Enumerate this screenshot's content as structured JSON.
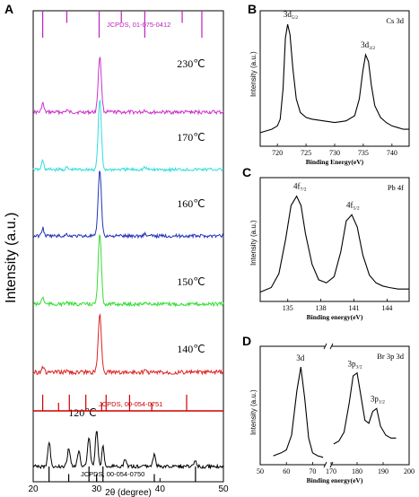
{
  "chart_data": [
    {
      "panel": "A",
      "type": "line",
      "xlabel": "2θ (degree)",
      "ylabel": "Intensity (a.u.)",
      "xlim": [
        20,
        50
      ],
      "xticks": [
        20,
        30,
        40,
        50
      ],
      "series": [
        {
          "name": "230℃",
          "color": "#cc33cc"
        },
        {
          "name": "170℃",
          "color": "#33dddd"
        },
        {
          "name": "160℃",
          "color": "#2233bb"
        },
        {
          "name": "150℃",
          "color": "#33dd33"
        },
        {
          "name": "140℃",
          "color": "#dd2222"
        },
        {
          "name": "120℃",
          "color": "#000000"
        }
      ],
      "peaks_x": [
        21.5,
        30.5
      ],
      "references": [
        {
          "label": "JCPDS, 01-075-0412",
          "color": "#bb22bb",
          "sticks_x": [
            21.5,
            25.3,
            30.4,
            33.9,
            37.6,
            43.5,
            46.6
          ]
        },
        {
          "label": "JCPDS, 00-054-0751",
          "color": "#cc0000",
          "sticks_x": [
            21.5,
            24.0,
            25.7,
            28.3,
            30.8,
            31.5,
            35.2,
            38.7,
            44.2
          ]
        },
        {
          "label": "JCPDS, 00-054-0750",
          "color": "#000000",
          "sticks_x": [
            22.5,
            25.6,
            28.8,
            30.0,
            31.0,
            39.1,
            45.6
          ]
        }
      ]
    },
    {
      "panel": "B",
      "type": "line",
      "title": "Cs 3d",
      "xlabel": "Binding Energy(eV)",
      "ylabel": "Intensity (a.u.)",
      "xlim": [
        717,
        743
      ],
      "xticks": [
        720,
        725,
        730,
        735,
        740
      ],
      "x": [
        717,
        718,
        719,
        720,
        720.5,
        721,
        721.4,
        721.8,
        722.2,
        722.7,
        723.3,
        724,
        725,
        726,
        728,
        730,
        732,
        733.5,
        734.3,
        734.9,
        735.4,
        735.9,
        736.4,
        737,
        738,
        739,
        740,
        741,
        742,
        743
      ],
      "y": [
        8,
        9,
        10,
        12,
        16,
        34,
        64,
        72,
        66,
        46,
        28,
        20,
        17,
        16,
        15,
        14,
        15,
        18,
        28,
        44,
        54,
        50,
        36,
        24,
        17,
        14,
        12,
        11,
        10,
        10
      ],
      "peak_labels": [
        {
          "text": "3d",
          "sub": "5/2",
          "x": 722
        },
        {
          "text": "3d",
          "sub": "3/2",
          "x": 735.5
        }
      ]
    },
    {
      "panel": "C",
      "type": "line",
      "title": "Pb 4f",
      "xlabel": "Binding energy(eV)",
      "ylabel": "Intensity (a.u.)",
      "xlim": [
        132.5,
        146
      ],
      "xticks": [
        135,
        138,
        141,
        144
      ],
      "x": [
        132.5,
        133.5,
        134.2,
        134.8,
        135.3,
        135.8,
        136.2,
        136.6,
        137.2,
        137.8,
        138.5,
        139.2,
        139.8,
        140.3,
        140.8,
        141.3,
        141.8,
        142.4,
        143,
        143.6,
        144.2,
        145,
        146
      ],
      "y": [
        6,
        9,
        18,
        40,
        62,
        68,
        62,
        44,
        24,
        14,
        12,
        16,
        32,
        52,
        56,
        48,
        30,
        17,
        12,
        10,
        9,
        8,
        8
      ],
      "peak_labels": [
        {
          "text": "4f",
          "sub": "7/2",
          "x": 136
        },
        {
          "text": "4f",
          "sub": "5/2",
          "x": 140.8
        }
      ]
    },
    {
      "panel": "D",
      "type": "line",
      "title": "Br 3p 3d",
      "xlabel": "Binding energy(eV)",
      "ylabel": "Intensity (a.u.)",
      "xlim_left": [
        50,
        75
      ],
      "xlim_right": [
        170,
        200
      ],
      "xticks": [
        50,
        60,
        70,
        170,
        180,
        190,
        200
      ],
      "segments": [
        {
          "x": [
            55,
            58,
            60,
            62,
            64,
            65.5,
            67,
            68.5,
            70,
            72,
            74
          ],
          "y": [
            6,
            8,
            10,
            20,
            50,
            66,
            45,
            18,
            8,
            6,
            5
          ]
        },
        {
          "x": [
            171,
            173,
            175,
            177,
            178.5,
            180,
            181.5,
            183,
            184.5,
            186,
            187.5,
            189,
            191,
            193,
            195
          ],
          "y": [
            14,
            16,
            22,
            42,
            60,
            62,
            46,
            30,
            28,
            36,
            38,
            26,
            20,
            18,
            18
          ]
        }
      ],
      "peak_labels": [
        {
          "text": "3d",
          "sub": "",
          "x": 65.5
        },
        {
          "text": "3p",
          "sub": "3/2",
          "x": 179.5
        },
        {
          "text": "3p",
          "sub": "1/2",
          "x": 186.5
        }
      ]
    }
  ],
  "panels": {
    "a": {
      "letter": "A"
    },
    "b": {
      "letter": "B"
    },
    "c": {
      "letter": "C"
    },
    "d": {
      "letter": "D"
    }
  }
}
